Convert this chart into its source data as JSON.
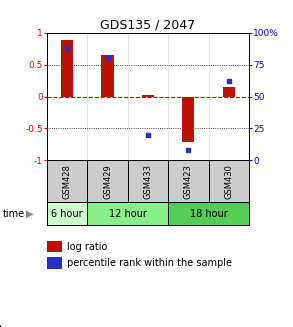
{
  "title": "GDS135 / 2047",
  "samples": [
    "GSM428",
    "GSM429",
    "GSM433",
    "GSM423",
    "GSM430"
  ],
  "log_ratio": [
    0.88,
    0.65,
    0.03,
    -0.72,
    0.15
  ],
  "percentile_rank": [
    88,
    80,
    20,
    8,
    62
  ],
  "bar_color": "#bb1100",
  "dot_color": "#2233bb",
  "ylim": [
    -1.0,
    1.0
  ],
  "dotted_lines": [
    -0.5,
    0.5
  ],
  "zero_line_color": "#cc0000",
  "bg_color": "#ffffff",
  "time_row": [
    {
      "label": "6 hour",
      "start": 0,
      "end": 1,
      "color": "#ccffcc"
    },
    {
      "label": "12 hour",
      "start": 1,
      "end": 3,
      "color": "#88ee88"
    },
    {
      "label": "18 hour",
      "start": 3,
      "end": 5,
      "color": "#55cc55"
    }
  ]
}
